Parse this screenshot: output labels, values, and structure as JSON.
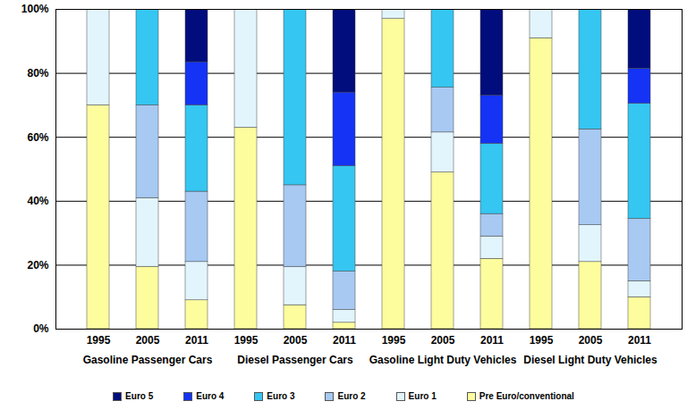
{
  "chart_data": {
    "type": "bar",
    "stacked": true,
    "grid": true,
    "legend": "bottom",
    "categories": [
      "1995",
      "2005",
      "2011",
      "1995",
      "2005",
      "2011",
      "1995",
      "2005",
      "2011",
      "1995",
      "2005",
      "2011"
    ],
    "groups": [
      "Gasoline Passenger Cars",
      "Diesel Passenger Cars",
      "Gasoline Light Duty Vehicles",
      "Diesel Light Duty Vehicles"
    ],
    "ylim": [
      0,
      100
    ],
    "yticks": [
      {
        "value": 0,
        "label": "0%"
      },
      {
        "value": 20,
        "label": "20%"
      },
      {
        "value": 40,
        "label": "40%"
      },
      {
        "value": 60,
        "label": "60%"
      },
      {
        "value": 80,
        "label": "80%"
      },
      {
        "value": 100,
        "label": "100%"
      }
    ],
    "series": [
      {
        "name": "Pre Euro/conventional",
        "color": "#fdfd9e",
        "values": [
          70,
          19.5,
          9,
          63,
          7.5,
          2,
          97,
          49,
          22,
          91,
          21,
          10
        ]
      },
      {
        "name": "Euro 1",
        "color": "#e2f5fd",
        "values": [
          30,
          21.5,
          12,
          37,
          12,
          4,
          3,
          12.5,
          7,
          9,
          11.5,
          5
        ]
      },
      {
        "name": "Euro 2",
        "color": "#a7c9f2",
        "values": [
          0,
          29,
          22,
          0,
          25.5,
          12,
          0,
          14,
          7,
          0,
          30,
          19.5
        ]
      },
      {
        "name": "Euro 3",
        "color": "#35c6f2",
        "values": [
          0,
          30,
          27,
          0,
          55,
          33,
          0,
          24.5,
          22,
          0,
          37.5,
          36
        ]
      },
      {
        "name": "Euro 4",
        "color": "#1433f5",
        "values": [
          0,
          0,
          13.5,
          0,
          0,
          23,
          0,
          0,
          15,
          0,
          0,
          11
        ]
      },
      {
        "name": "Euro 5",
        "color": "#010d7c",
        "values": [
          0,
          0,
          16.5,
          0,
          0,
          26,
          0,
          0,
          27,
          0,
          0,
          18.5
        ]
      }
    ]
  }
}
